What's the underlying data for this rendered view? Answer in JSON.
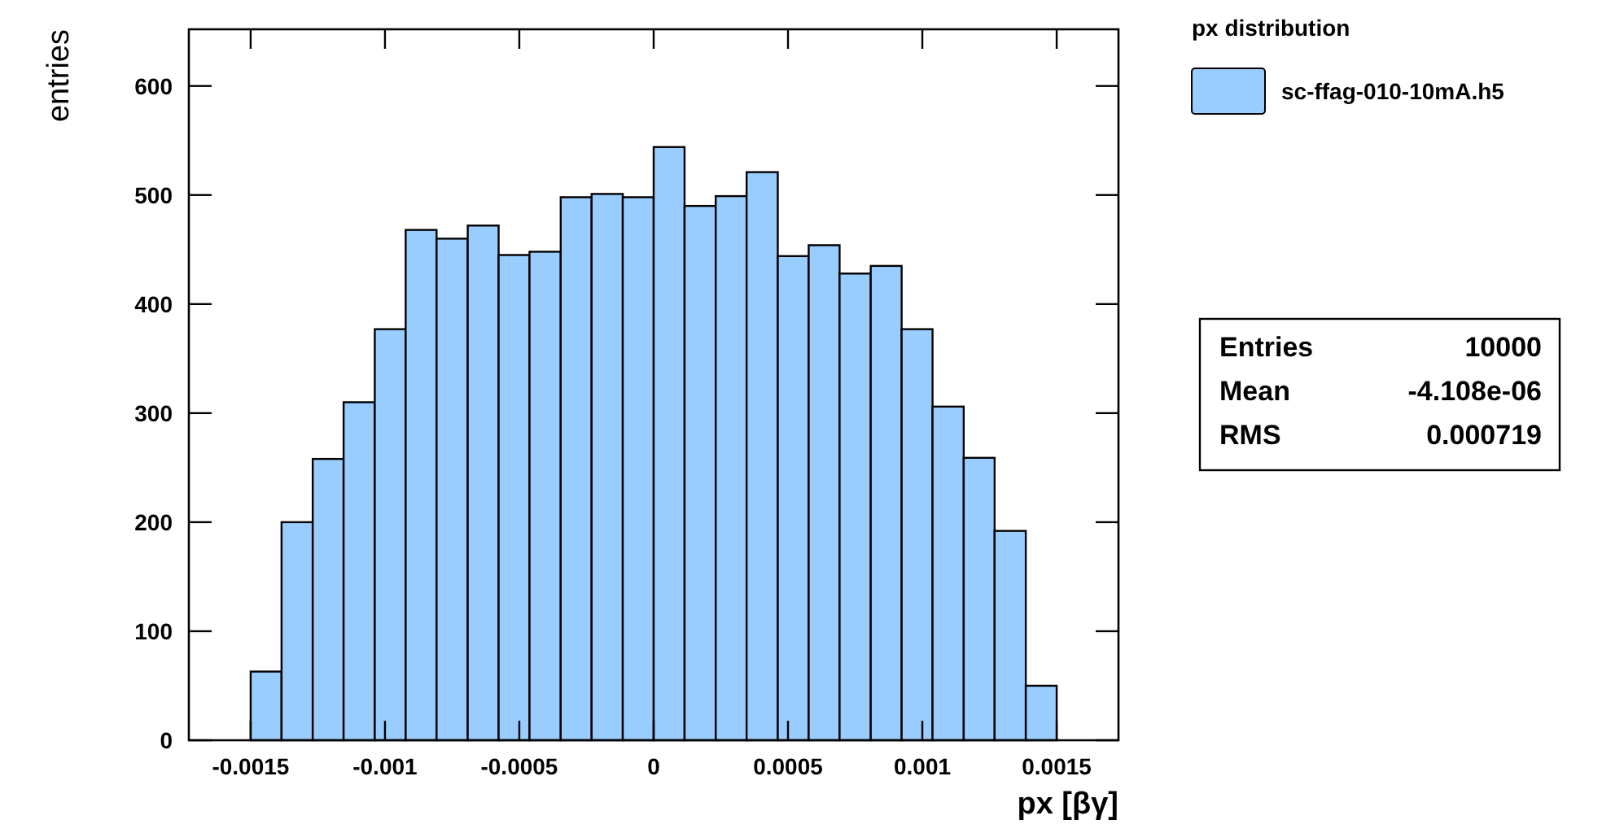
{
  "chart_data": {
    "type": "histogram",
    "xlabel": "px [βγ]",
    "ylabel": "entries",
    "legend_title": "px distribution",
    "legend": "right",
    "bins": [
      -0.0015,
      -0.001385,
      -0.001269,
      -0.001154,
      -0.001038,
      -0.000923,
      -0.000808,
      -0.000692,
      -0.000577,
      -0.000462,
      -0.000346,
      -0.000231,
      -0.000115,
      0,
      0.000115,
      0.000231,
      0.000346,
      0.000462,
      0.000577,
      0.000692,
      0.000808,
      0.000923,
      0.001038,
      0.001154,
      0.001269,
      0.001385,
      0.0015
    ],
    "series": [
      {
        "name": "sc-ffag-010-10mA.h5",
        "color": "#99ccff",
        "values": [
          63,
          200,
          258,
          310,
          377,
          468,
          460,
          472,
          445,
          448,
          498,
          501,
          498,
          544,
          490,
          499,
          521,
          444,
          454,
          428,
          435,
          377,
          306,
          259,
          192,
          50
        ]
      }
    ],
    "xlim": [
      -0.00173,
      0.00173
    ],
    "ylim": [
      0,
      652
    ],
    "xticks": [
      -0.0015,
      -0.001,
      -0.0005,
      0,
      0.0005,
      0.001,
      0.0015
    ],
    "yticks": [
      0,
      100,
      200,
      300,
      400,
      500,
      600
    ],
    "annotations": [
      "Entries 10000",
      "Mean -4.108e-06",
      "RMS 0.000719"
    ]
  }
}
